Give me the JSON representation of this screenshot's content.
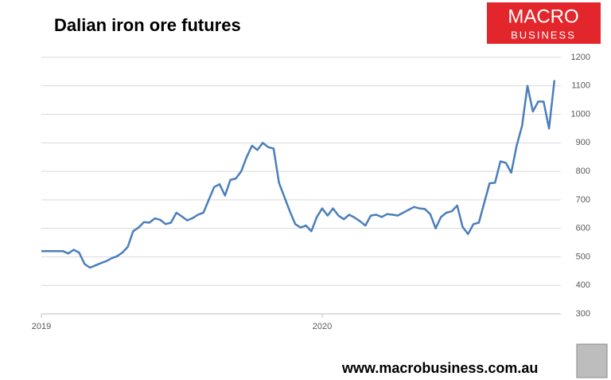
{
  "chart_data": {
    "type": "line",
    "title": "Dalian iron ore futures",
    "logo": {
      "line1": "MACRO",
      "line2": "BUSINESS"
    },
    "footer": "www.macrobusiness.com.au",
    "categories": [
      "2019",
      null,
      null,
      null,
      null,
      null,
      null,
      null,
      null,
      null,
      null,
      null,
      null,
      null,
      null,
      null,
      null,
      null,
      null,
      null,
      null,
      null,
      null,
      null,
      null,
      null,
      null,
      null,
      null,
      null,
      null,
      null,
      null,
      null,
      null,
      null,
      null,
      null,
      null,
      null,
      null,
      null,
      null,
      null,
      null,
      null,
      null,
      null,
      null,
      null,
      null,
      null,
      "2020",
      null,
      null,
      null,
      null,
      null,
      null,
      null,
      null,
      null,
      null,
      null,
      null,
      null,
      null,
      null,
      null,
      null,
      null,
      null,
      null,
      null,
      null,
      null,
      null,
      null,
      null,
      null,
      null,
      null,
      null,
      null,
      null,
      null,
      null,
      null,
      null,
      null,
      null,
      null,
      null,
      null,
      null,
      null
    ],
    "series": [
      {
        "name": "Dalian iron ore futures",
        "color": "#4a7ebb",
        "values": [
          520,
          520,
          520,
          520,
          520,
          512,
          525,
          515,
          475,
          462,
          470,
          478,
          485,
          495,
          502,
          515,
          535,
          590,
          603,
          622,
          620,
          635,
          630,
          615,
          620,
          655,
          642,
          628,
          636,
          648,
          655,
          700,
          745,
          755,
          715,
          770,
          775,
          800,
          850,
          890,
          875,
          900,
          885,
          880,
          760,
          710,
          660,
          615,
          603,
          610,
          590,
          640,
          670,
          645,
          670,
          645,
          632,
          648,
          638,
          625,
          610,
          645,
          648,
          640,
          650,
          648,
          645,
          655,
          665,
          675,
          670,
          668,
          650,
          600,
          640,
          655,
          660,
          680,
          605,
          580,
          615,
          620,
          690,
          758,
          760,
          835,
          830,
          795,
          890,
          960,
          1100,
          1010,
          1045,
          1045,
          950,
          1120
        ]
      }
    ],
    "ylim": [
      300,
      1200
    ],
    "yticks": [
      300,
      400,
      500,
      600,
      700,
      800,
      900,
      1000,
      1100,
      1200
    ],
    "grid": true
  }
}
